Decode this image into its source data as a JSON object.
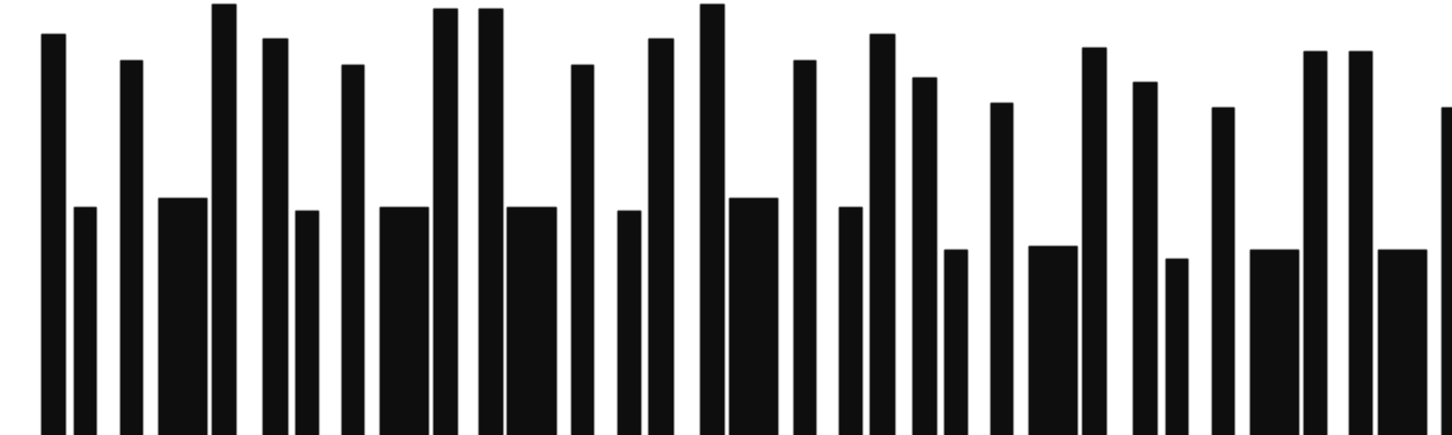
{
  "colors": {
    "background": "#ffffff",
    "bar": "#0e0e0e"
  },
  "barcode": {
    "levels": [
      0.93,
      0.53,
      0.87,
      0.55,
      1.0,
      0.92,
      0.52,
      0.86,
      0.53,
      0.99,
      0.99,
      0.53,
      0.86,
      0.52,
      0.92,
      1.0,
      0.55,
      0.87,
      0.53,
      0.93,
      0.83,
      0.43,
      0.77,
      0.44,
      0.9,
      0.82,
      0.41,
      0.76,
      0.43,
      0.89,
      0.89,
      0.43,
      0.76
    ]
  }
}
